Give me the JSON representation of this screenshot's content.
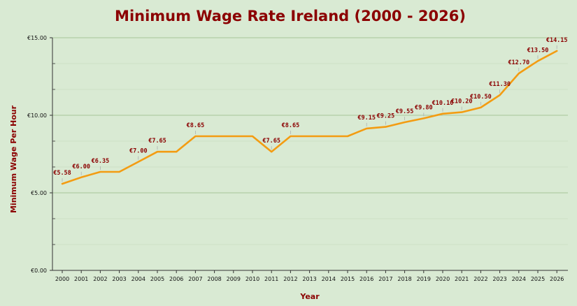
{
  "chart_data": {
    "type": "line",
    "title": "Minimum Wage Rate Ireland (2000 - 2026)",
    "xlabel": "Year",
    "ylabel": "Minimum Wage Per Hour",
    "x": [
      "2000",
      "2001",
      "2002",
      "2003",
      "2004",
      "2005",
      "2006",
      "2007",
      "2008",
      "2009",
      "2010",
      "2011",
      "2012",
      "2013",
      "2014",
      "2015",
      "2016",
      "2017",
      "2018",
      "2019",
      "2020",
      "2021",
      "2022",
      "2023",
      "2024",
      "2025",
      "2026"
    ],
    "values": [
      5.58,
      6.0,
      6.35,
      6.35,
      7.0,
      7.65,
      7.65,
      8.65,
      8.65,
      8.65,
      8.65,
      7.65,
      8.65,
      8.65,
      8.65,
      8.65,
      9.15,
      9.25,
      9.55,
      9.8,
      10.1,
      10.2,
      10.5,
      11.3,
      12.7,
      13.5,
      14.15
    ],
    "data_labels": [
      {
        "index": 0,
        "text": "€5.58"
      },
      {
        "index": 1,
        "text": "€6.00"
      },
      {
        "index": 2,
        "text": "€6.35"
      },
      {
        "index": 4,
        "text": "€7.00"
      },
      {
        "index": 5,
        "text": "€7.65"
      },
      {
        "index": 7,
        "text": "€8.65"
      },
      {
        "index": 11,
        "text": "€7.65"
      },
      {
        "index": 12,
        "text": "€8.65"
      },
      {
        "index": 16,
        "text": "€9.15"
      },
      {
        "index": 17,
        "text": "€9.25"
      },
      {
        "index": 18,
        "text": "€9.55"
      },
      {
        "index": 19,
        "text": "€9.80"
      },
      {
        "index": 20,
        "text": "€10.10"
      },
      {
        "index": 21,
        "text": "€10.20"
      },
      {
        "index": 22,
        "text": "€10.50"
      },
      {
        "index": 23,
        "text": "€11.30"
      },
      {
        "index": 24,
        "text": "€12.70"
      },
      {
        "index": 25,
        "text": "€13.50"
      },
      {
        "index": 26,
        "text": "€14.15"
      }
    ],
    "y_ticks": [
      {
        "value": 0,
        "label": "€0.00"
      },
      {
        "value": 5,
        "label": "€5.00"
      },
      {
        "value": 10,
        "label": "€10.00"
      },
      {
        "value": 15,
        "label": "€15.00"
      }
    ],
    "ylim": [
      0,
      15
    ],
    "grid": true,
    "colors": {
      "line": "#f39c12",
      "label": "#8b0000",
      "background": "#d9ead3",
      "grid_major": "#a8c69a",
      "grid_minor": "#c8dcc0",
      "axis": "#333333"
    }
  }
}
